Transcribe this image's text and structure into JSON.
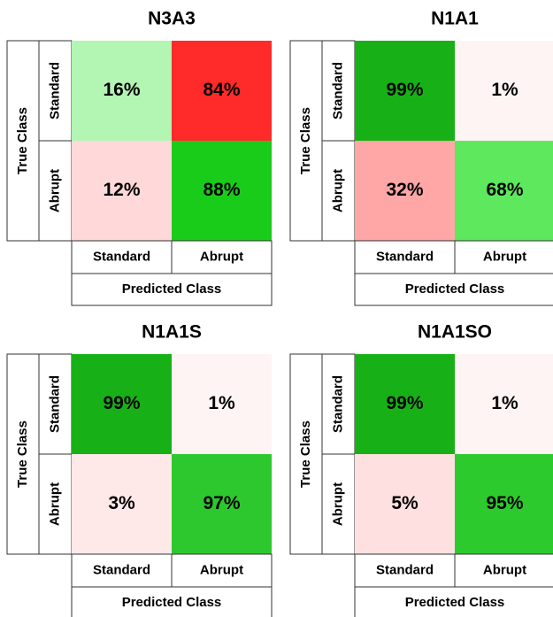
{
  "chart_data": [
    {
      "type": "heatmap",
      "title": "N3A3",
      "xlabel": "Predicted Class",
      "ylabel": "True Class",
      "x_categories": [
        "Standard",
        "Abrupt"
      ],
      "y_categories": [
        "Standard",
        "Abrupt"
      ],
      "values": [
        [
          16,
          84
        ],
        [
          12,
          88
        ]
      ],
      "value_labels": [
        [
          "16%",
          "84%"
        ],
        [
          "12%",
          "88%"
        ]
      ],
      "colors": [
        [
          "#b3f5b3",
          "#ff2a2a"
        ],
        [
          "#ffd9d9",
          "#19cc19"
        ]
      ]
    },
    {
      "type": "heatmap",
      "title": "N1A1",
      "xlabel": "Predicted Class",
      "ylabel": "True Class",
      "x_categories": [
        "Standard",
        "Abrupt"
      ],
      "y_categories": [
        "Standard",
        "Abrupt"
      ],
      "values": [
        [
          99,
          1
        ],
        [
          32,
          68
        ]
      ],
      "value_labels": [
        [
          "99%",
          "1%"
        ],
        [
          "32%",
          "68%"
        ]
      ],
      "colors": [
        [
          "#17b117",
          "#fff4f4"
        ],
        [
          "#ffa6a6",
          "#5ee85e"
        ]
      ]
    },
    {
      "type": "heatmap",
      "title": "N1A1S",
      "xlabel": "Predicted Class",
      "ylabel": "True Class",
      "x_categories": [
        "Standard",
        "Abrupt"
      ],
      "y_categories": [
        "Standard",
        "Abrupt"
      ],
      "values": [
        [
          99,
          1
        ],
        [
          3,
          97
        ]
      ],
      "value_labels": [
        [
          "99%",
          "1%"
        ],
        [
          "3%",
          "97%"
        ]
      ],
      "colors": [
        [
          "#17b117",
          "#fff4f4"
        ],
        [
          "#ffe8e8",
          "#2dc82d"
        ]
      ]
    },
    {
      "type": "heatmap",
      "title": "N1A1SO",
      "xlabel": "Predicted Class",
      "ylabel": "True Class",
      "x_categories": [
        "Standard",
        "Abrupt"
      ],
      "y_categories": [
        "Standard",
        "Abrupt"
      ],
      "values": [
        [
          99,
          1
        ],
        [
          5,
          95
        ]
      ],
      "value_labels": [
        [
          "99%",
          "1%"
        ],
        [
          "5%",
          "95%"
        ]
      ],
      "colors": [
        [
          "#17b117",
          "#fff4f4"
        ],
        [
          "#ffe0e0",
          "#2dca2d"
        ]
      ]
    }
  ]
}
